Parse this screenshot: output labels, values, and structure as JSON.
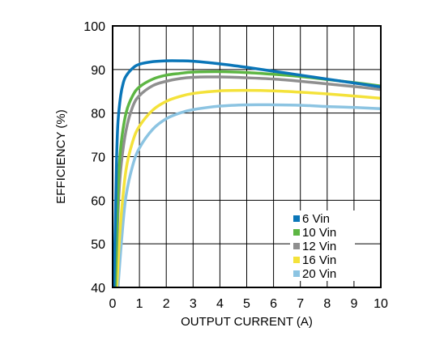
{
  "chart_data": {
    "type": "line",
    "title": "",
    "xlabel": "OUTPUT CURRENT (A)",
    "ylabel": "EFFICIENCY (%)",
    "xlim": [
      0,
      10
    ],
    "ylim": [
      40,
      100
    ],
    "xticks": [
      "0",
      "1",
      "2",
      "3",
      "4",
      "5",
      "6",
      "7",
      "8",
      "9",
      "10"
    ],
    "yticks": [
      "40",
      "50",
      "60",
      "70",
      "80",
      "90",
      "100"
    ],
    "grid": true,
    "legend_position": "bottom-right",
    "series": [
      {
        "name": "6 Vin",
        "color": "#0a76b8",
        "points": [
          [
            0.05,
            40
          ],
          [
            0.1,
            55
          ],
          [
            0.15,
            70
          ],
          [
            0.2,
            78
          ],
          [
            0.3,
            84
          ],
          [
            0.4,
            87
          ],
          [
            0.5,
            88.5
          ],
          [
            0.75,
            90.3
          ],
          [
            1,
            91.2
          ],
          [
            1.5,
            91.8
          ],
          [
            2,
            92
          ],
          [
            2.5,
            92
          ],
          [
            3,
            91.9
          ],
          [
            4,
            91.3
          ],
          [
            5,
            90.5
          ],
          [
            6,
            89.6
          ],
          [
            7,
            88.7
          ],
          [
            8,
            87.8
          ],
          [
            9,
            86.9
          ],
          [
            10,
            86
          ]
        ]
      },
      {
        "name": "10 Vin",
        "color": "#5db643",
        "points": [
          [
            0.1,
            40
          ],
          [
            0.2,
            62
          ],
          [
            0.3,
            72
          ],
          [
            0.5,
            80
          ],
          [
            0.75,
            84
          ],
          [
            1,
            86
          ],
          [
            1.5,
            87.8
          ],
          [
            2,
            88.7
          ],
          [
            2.5,
            89.1
          ],
          [
            3,
            89.4
          ],
          [
            4,
            89.5
          ],
          [
            5,
            89.3
          ],
          [
            6,
            88.9
          ],
          [
            7,
            88.4
          ],
          [
            8,
            87.7
          ],
          [
            9,
            87
          ],
          [
            10,
            86.2
          ]
        ]
      },
      {
        "name": "12 Vin",
        "color": "#8f8f8f",
        "points": [
          [
            0.1,
            40
          ],
          [
            0.2,
            57
          ],
          [
            0.3,
            67
          ],
          [
            0.5,
            76
          ],
          [
            0.75,
            81.5
          ],
          [
            1,
            84
          ],
          [
            1.5,
            86.3
          ],
          [
            2,
            87.3
          ],
          [
            2.5,
            87.9
          ],
          [
            3,
            88.2
          ],
          [
            4,
            88.3
          ],
          [
            5,
            88.1
          ],
          [
            6,
            87.8
          ],
          [
            7,
            87.3
          ],
          [
            8,
            86.7
          ],
          [
            9,
            86.1
          ],
          [
            10,
            85.4
          ]
        ]
      },
      {
        "name": "16 Vin",
        "color": "#f4e23a",
        "points": [
          [
            0.15,
            40
          ],
          [
            0.3,
            55
          ],
          [
            0.5,
            67
          ],
          [
            0.75,
            73.5
          ],
          [
            1,
            77
          ],
          [
            1.5,
            80.7
          ],
          [
            2,
            82.7
          ],
          [
            2.5,
            83.8
          ],
          [
            3,
            84.5
          ],
          [
            4,
            85.1
          ],
          [
            5,
            85.2
          ],
          [
            6,
            85.1
          ],
          [
            7,
            84.8
          ],
          [
            8,
            84.4
          ],
          [
            9,
            83.9
          ],
          [
            10,
            83.4
          ]
        ]
      },
      {
        "name": "20 Vin",
        "color": "#8cc4e2",
        "points": [
          [
            0.2,
            40
          ],
          [
            0.35,
            52
          ],
          [
            0.5,
            61
          ],
          [
            0.75,
            68
          ],
          [
            1,
            72
          ],
          [
            1.5,
            76.3
          ],
          [
            2,
            78.7
          ],
          [
            2.5,
            80
          ],
          [
            3,
            80.8
          ],
          [
            4,
            81.6
          ],
          [
            5,
            81.9
          ],
          [
            6,
            81.9
          ],
          [
            7,
            81.8
          ],
          [
            8,
            81.5
          ],
          [
            9,
            81.3
          ],
          [
            10,
            81
          ]
        ]
      }
    ]
  }
}
